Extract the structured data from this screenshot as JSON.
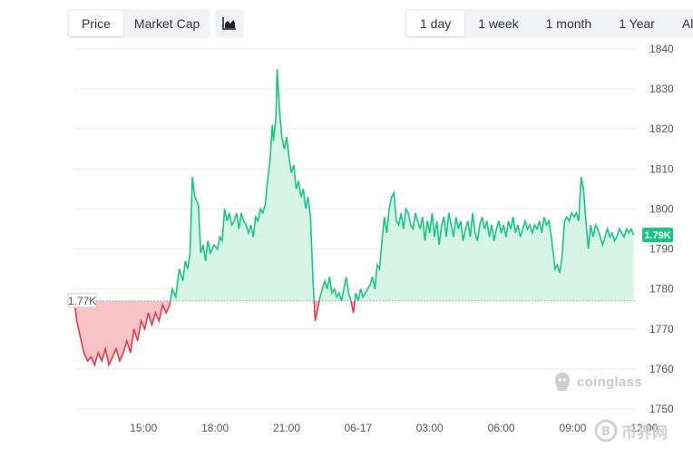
{
  "controls": {
    "metric_tabs": [
      "Price",
      "Market Cap"
    ],
    "active_metric": "Price",
    "chart_type_icon": "area-chart-icon",
    "range_tabs": [
      "1 day",
      "1 week",
      "1 month",
      "1 Year",
      "All"
    ],
    "active_range": "1 day"
  },
  "watermark": {
    "text": "coinglass",
    "icon": "coinglass-logo-icon"
  },
  "watermark2": {
    "text": "币界网",
    "icon": "bijie-logo-icon"
  },
  "colors": {
    "up": "#16c784",
    "up_fill": "#d6f5e6",
    "down": "#ea3943",
    "down_fill": "#f9c4c7"
  },
  "chart_data": {
    "type": "area",
    "title": "",
    "xlabel": "",
    "ylabel": "",
    "ylim": [
      1750,
      1840
    ],
    "yticks": [
      1750,
      1760,
      1770,
      1780,
      1790,
      1800,
      1810,
      1820,
      1830,
      1840
    ],
    "xticks": [
      "15:00",
      "18:00",
      "21:00",
      "06-17",
      "03:00",
      "06:00",
      "09:00",
      "12:00"
    ],
    "xtick_hours": [
      15,
      18,
      21,
      24,
      27,
      30,
      33,
      36
    ],
    "x_range": [
      12.1,
      35.6
    ],
    "baseline": {
      "value": 1777,
      "label": "1.77K"
    },
    "current": {
      "value": 1793.5,
      "label": "1.79K"
    },
    "grid": true,
    "points": [
      [
        12.1,
        1777
      ],
      [
        12.2,
        1772
      ],
      [
        12.35,
        1768
      ],
      [
        12.5,
        1764
      ],
      [
        12.65,
        1762
      ],
      [
        12.8,
        1763
      ],
      [
        12.95,
        1761
      ],
      [
        13.1,
        1764
      ],
      [
        13.25,
        1762
      ],
      [
        13.4,
        1765
      ],
      [
        13.55,
        1761
      ],
      [
        13.7,
        1763
      ],
      [
        13.85,
        1765
      ],
      [
        14.0,
        1762
      ],
      [
        14.15,
        1764
      ],
      [
        14.3,
        1767
      ],
      [
        14.45,
        1764
      ],
      [
        14.6,
        1770
      ],
      [
        14.75,
        1767
      ],
      [
        14.9,
        1772
      ],
      [
        15.05,
        1770
      ],
      [
        15.2,
        1774
      ],
      [
        15.35,
        1771
      ],
      [
        15.5,
        1774
      ],
      [
        15.65,
        1772
      ],
      [
        15.8,
        1776
      ],
      [
        15.95,
        1774
      ],
      [
        16.1,
        1776
      ],
      [
        16.2,
        1780
      ],
      [
        16.35,
        1778
      ],
      [
        16.5,
        1785
      ],
      [
        16.65,
        1782
      ],
      [
        16.75,
        1787
      ],
      [
        16.85,
        1785
      ],
      [
        16.95,
        1789
      ],
      [
        17.05,
        1808
      ],
      [
        17.15,
        1803
      ],
      [
        17.3,
        1801
      ],
      [
        17.4,
        1789
      ],
      [
        17.5,
        1791
      ],
      [
        17.6,
        1787
      ],
      [
        17.7,
        1792
      ],
      [
        17.8,
        1789
      ],
      [
        17.95,
        1791
      ],
      [
        18.1,
        1790
      ],
      [
        18.2,
        1793
      ],
      [
        18.3,
        1792
      ],
      [
        18.4,
        1800
      ],
      [
        18.5,
        1797
      ],
      [
        18.6,
        1799
      ],
      [
        18.7,
        1796
      ],
      [
        18.8,
        1797
      ],
      [
        18.9,
        1799
      ],
      [
        19.0,
        1795
      ],
      [
        19.1,
        1799
      ],
      [
        19.2,
        1797
      ],
      [
        19.3,
        1796
      ],
      [
        19.4,
        1794
      ],
      [
        19.5,
        1796
      ],
      [
        19.6,
        1793
      ],
      [
        19.7,
        1798
      ],
      [
        19.8,
        1797
      ],
      [
        19.9,
        1800
      ],
      [
        20.0,
        1799
      ],
      [
        20.1,
        1801
      ],
      [
        20.2,
        1807
      ],
      [
        20.3,
        1812
      ],
      [
        20.4,
        1821
      ],
      [
        20.45,
        1817
      ],
      [
        20.55,
        1823
      ],
      [
        20.6,
        1835
      ],
      [
        20.7,
        1825
      ],
      [
        20.8,
        1818
      ],
      [
        20.9,
        1815
      ],
      [
        21.0,
        1818
      ],
      [
        21.1,
        1813
      ],
      [
        21.2,
        1809
      ],
      [
        21.3,
        1811
      ],
      [
        21.4,
        1805
      ],
      [
        21.5,
        1807
      ],
      [
        21.6,
        1803
      ],
      [
        21.7,
        1805
      ],
      [
        21.8,
        1800
      ],
      [
        21.9,
        1803
      ],
      [
        22.0,
        1798
      ],
      [
        22.1,
        1783
      ],
      [
        22.2,
        1772
      ],
      [
        22.3,
        1775
      ],
      [
        22.4,
        1778
      ],
      [
        22.5,
        1780
      ],
      [
        22.6,
        1782
      ],
      [
        22.7,
        1780
      ],
      [
        22.8,
        1783
      ],
      [
        22.9,
        1779
      ],
      [
        23.0,
        1780
      ],
      [
        23.1,
        1778
      ],
      [
        23.2,
        1779
      ],
      [
        23.3,
        1777
      ],
      [
        23.4,
        1780
      ],
      [
        23.5,
        1783
      ],
      [
        23.6,
        1779
      ],
      [
        23.7,
        1777
      ],
      [
        23.8,
        1774
      ],
      [
        23.9,
        1779
      ],
      [
        24.0,
        1777
      ],
      [
        24.1,
        1780
      ],
      [
        24.2,
        1778
      ],
      [
        24.3,
        1779
      ],
      [
        24.4,
        1780
      ],
      [
        24.5,
        1781
      ],
      [
        24.6,
        1783
      ],
      [
        24.7,
        1780
      ],
      [
        24.8,
        1786
      ],
      [
        24.9,
        1785
      ],
      [
        25.0,
        1792
      ],
      [
        25.1,
        1798
      ],
      [
        25.2,
        1794
      ],
      [
        25.3,
        1800
      ],
      [
        25.4,
        1803
      ],
      [
        25.5,
        1804
      ],
      [
        25.6,
        1797
      ],
      [
        25.7,
        1796
      ],
      [
        25.8,
        1799
      ],
      [
        25.9,
        1795
      ],
      [
        26.0,
        1800
      ],
      [
        26.1,
        1799
      ],
      [
        26.2,
        1796
      ],
      [
        26.3,
        1795
      ],
      [
        26.4,
        1799
      ],
      [
        26.5,
        1797
      ],
      [
        26.6,
        1795
      ],
      [
        26.7,
        1798
      ],
      [
        26.8,
        1792
      ],
      [
        26.9,
        1797
      ],
      [
        27.0,
        1794
      ],
      [
        27.1,
        1799
      ],
      [
        27.2,
        1793
      ],
      [
        27.3,
        1797
      ],
      [
        27.4,
        1791
      ],
      [
        27.5,
        1796
      ],
      [
        27.6,
        1798
      ],
      [
        27.7,
        1793
      ],
      [
        27.8,
        1799
      ],
      [
        27.9,
        1796
      ],
      [
        28.0,
        1793
      ],
      [
        28.1,
        1798
      ],
      [
        28.2,
        1795
      ],
      [
        28.3,
        1797
      ],
      [
        28.4,
        1792
      ],
      [
        28.5,
        1795
      ],
      [
        28.6,
        1797
      ],
      [
        28.7,
        1793
      ],
      [
        28.8,
        1799
      ],
      [
        28.9,
        1794
      ],
      [
        29.0,
        1792
      ],
      [
        29.1,
        1796
      ],
      [
        29.2,
        1798
      ],
      [
        29.3,
        1795
      ],
      [
        29.4,
        1797
      ],
      [
        29.5,
        1793
      ],
      [
        29.6,
        1796
      ],
      [
        29.7,
        1792
      ],
      [
        29.8,
        1795
      ],
      [
        29.9,
        1797
      ],
      [
        30.0,
        1794
      ],
      [
        30.1,
        1796
      ],
      [
        30.2,
        1793
      ],
      [
        30.3,
        1797
      ],
      [
        30.4,
        1795
      ],
      [
        30.5,
        1798
      ],
      [
        30.6,
        1794
      ],
      [
        30.7,
        1796
      ],
      [
        30.8,
        1793
      ],
      [
        30.9,
        1795
      ],
      [
        31.0,
        1797
      ],
      [
        31.1,
        1795
      ],
      [
        31.2,
        1796
      ],
      [
        31.3,
        1794
      ],
      [
        31.4,
        1796
      ],
      [
        31.5,
        1795
      ],
      [
        31.6,
        1797
      ],
      [
        31.7,
        1794
      ],
      [
        31.8,
        1798
      ],
      [
        31.9,
        1796
      ],
      [
        32.0,
        1797
      ],
      [
        32.1,
        1793
      ],
      [
        32.2,
        1788
      ],
      [
        32.25,
        1785
      ],
      [
        32.35,
        1786
      ],
      [
        32.45,
        1784
      ],
      [
        32.55,
        1788
      ],
      [
        32.65,
        1797
      ],
      [
        32.75,
        1798
      ],
      [
        32.85,
        1797
      ],
      [
        32.95,
        1799
      ],
      [
        33.05,
        1798
      ],
      [
        33.15,
        1799
      ],
      [
        33.25,
        1797
      ],
      [
        33.35,
        1808
      ],
      [
        33.45,
        1805
      ],
      [
        33.55,
        1797
      ],
      [
        33.65,
        1790
      ],
      [
        33.75,
        1796
      ],
      [
        33.85,
        1793
      ],
      [
        33.95,
        1796
      ],
      [
        34.05,
        1795
      ],
      [
        34.15,
        1793
      ],
      [
        34.25,
        1791
      ],
      [
        34.35,
        1793
      ],
      [
        34.45,
        1795
      ],
      [
        34.55,
        1793
      ],
      [
        34.65,
        1794
      ],
      [
        34.75,
        1792
      ],
      [
        34.85,
        1793
      ],
      [
        34.95,
        1795
      ],
      [
        35.05,
        1794
      ],
      [
        35.15,
        1793
      ],
      [
        35.25,
        1795
      ],
      [
        35.35,
        1794
      ],
      [
        35.45,
        1795
      ],
      [
        35.55,
        1793.5
      ]
    ]
  }
}
